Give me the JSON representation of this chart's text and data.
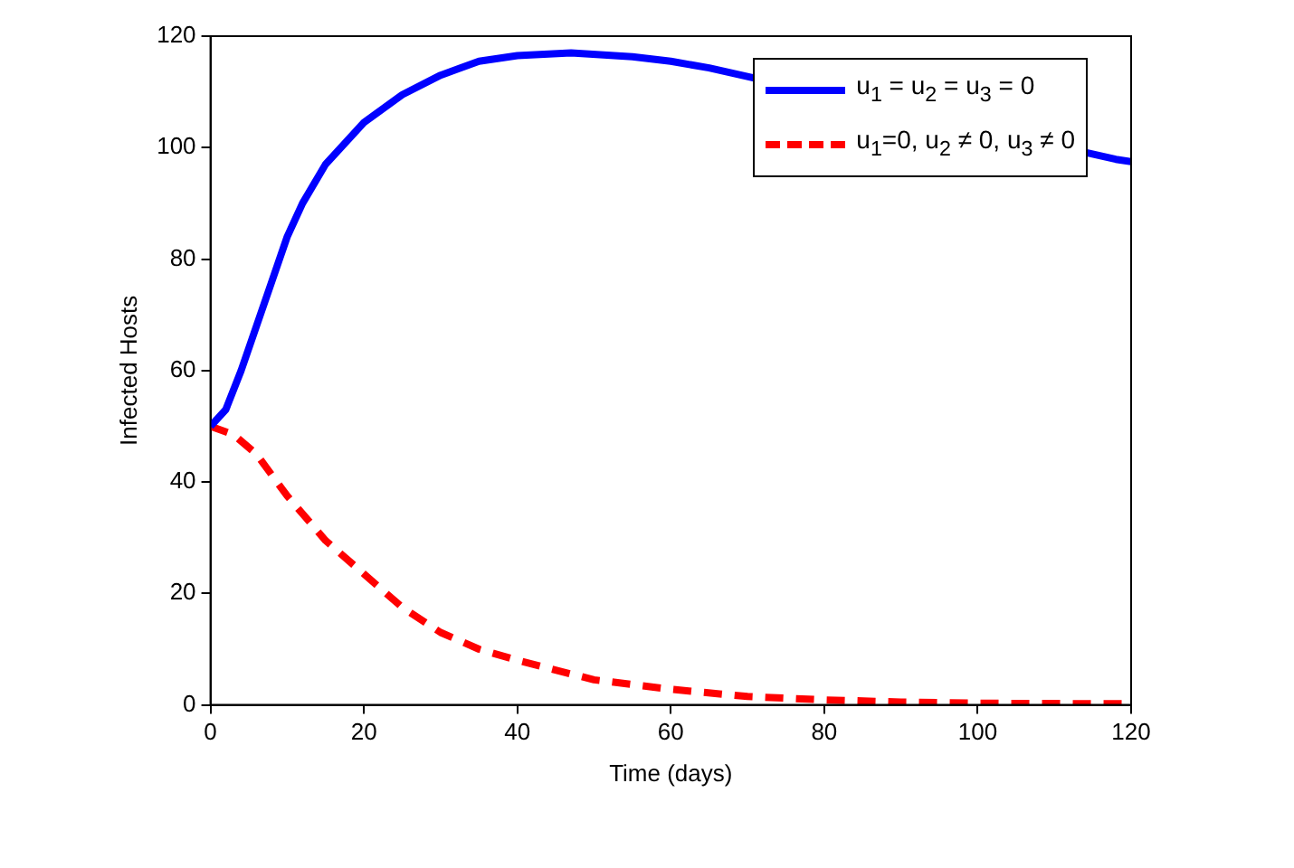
{
  "chart_data": {
    "type": "line",
    "xlabel": "Time (days)",
    "ylabel": "Infected Hosts",
    "xlim": [
      0,
      120
    ],
    "xticks": [
      0,
      20,
      40,
      60,
      80,
      100,
      120
    ],
    "ylim": [
      0,
      120
    ],
    "yticks": [
      0,
      20,
      40,
      60,
      80,
      100,
      120
    ],
    "grid": false,
    "legend": "top right",
    "marker": "none",
    "series": [
      {
        "name": "u$_{1}$ = u$_{2}$ = u$_{3}$ = 0",
        "color": "#0000ff",
        "line_style": "solid",
        "x": [
          0,
          2,
          4,
          6,
          8,
          10,
          12,
          15,
          20,
          25,
          30,
          35,
          40,
          47,
          55,
          60,
          65,
          70,
          80,
          90,
          100,
          118,
          120
        ],
        "values": [
          50,
          53,
          60,
          68,
          76,
          84,
          90,
          97,
          104.5,
          109.5,
          113,
          115.5,
          116.5,
          117,
          116.3,
          115.5,
          114.3,
          null,
          null,
          null,
          null,
          97.9,
          97.5
        ]
      },
      {
        "name": "u$_{1}$=0, u$_{2}$ ≠ 0, u$_{3}$ ≠ 0",
        "color": "#ff0000",
        "line_style": "dashed",
        "x": [
          0,
          3,
          6,
          10,
          15,
          20,
          25,
          30,
          35,
          40,
          50,
          60,
          70,
          80,
          90,
          100,
          120
        ],
        "values": [
          50,
          48.5,
          45,
          37.5,
          29.5,
          23.5,
          17.5,
          13,
          10,
          8,
          4.5,
          2.8,
          1.5,
          0.9,
          0.5,
          0.3,
          0.2
        ]
      }
    ]
  }
}
